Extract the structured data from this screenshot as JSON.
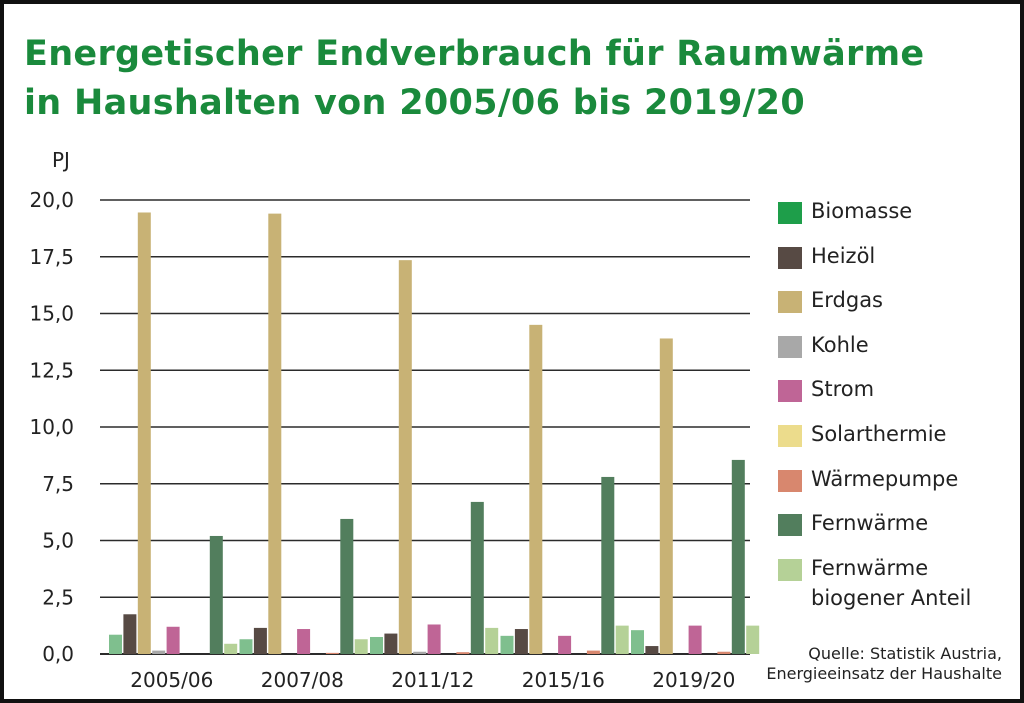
{
  "title": {
    "line1": "Energetischer Endverbrauch für Raumwärme",
    "line2": "in Haushalten von 2005/06 bis 2019/20"
  },
  "source": {
    "line1": "Quelle: Statistik Austria,",
    "line2": "Energieeinsatz der Haushalte"
  },
  "chart_data": {
    "type": "bar",
    "title": "Energetischer Endverbrauch für Raumwärme in Haushalten von 2005/06 bis 2019/20",
    "ylabel": "PJ",
    "ylim": [
      0,
      20
    ],
    "yticks": [
      "0,0",
      "2,5",
      "5,0",
      "7,5",
      "10,0",
      "12,5",
      "15,0",
      "17,5",
      "20,0"
    ],
    "categories": [
      "2005/06",
      "2007/08",
      "2011/12",
      "2015/16",
      "2019/20"
    ],
    "grid": true,
    "legend_position": "right",
    "series": [
      {
        "name": "Biomasse",
        "color": "#7fbf8e",
        "legend_color": "#1e9e4a",
        "values": [
          0.85,
          0.65,
          0.75,
          0.8,
          1.05
        ]
      },
      {
        "name": "Heizöl",
        "color": "#574a44",
        "values": [
          1.75,
          1.15,
          0.9,
          1.1,
          0.35
        ]
      },
      {
        "name": "Erdgas",
        "color": "#c8b275",
        "values": [
          19.45,
          19.4,
          17.35,
          14.5,
          13.9
        ]
      },
      {
        "name": "Kohle",
        "color": "#a8a8a8",
        "values": [
          0.15,
          0.0,
          0.1,
          0.0,
          0.0
        ]
      },
      {
        "name": "Strom",
        "color": "#bf6596",
        "values": [
          1.2,
          1.1,
          1.3,
          0.8,
          1.25
        ]
      },
      {
        "name": "Solarthermie",
        "color": "#ecdc8c",
        "values": [
          0.0,
          0.0,
          0.0,
          0.0,
          0.0
        ]
      },
      {
        "name": "Wärmepumpe",
        "color": "#d8876e",
        "values": [
          0.0,
          0.05,
          0.08,
          0.15,
          0.1
        ]
      },
      {
        "name": "Fernwärme",
        "color": "#527e5d",
        "values": [
          5.2,
          5.95,
          6.7,
          7.8,
          8.55
        ]
      },
      {
        "name": "Fernwärme\nbiogener Anteil",
        "color": "#b5d197",
        "values": [
          0.45,
          0.65,
          1.15,
          1.25,
          1.25
        ]
      }
    ]
  }
}
